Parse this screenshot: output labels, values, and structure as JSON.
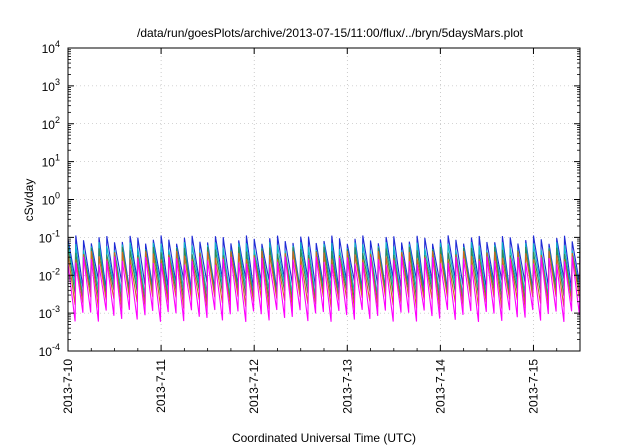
{
  "chart_data": {
    "type": "line",
    "title": "/data/run/goesPlots/archive/2013-07-15/11:00/flux/../bryn/5daysMars.plot",
    "xlabel": "Coordinated Universal Time (UTC)",
    "ylabel": "cSv/day",
    "x_range": [
      "2013-07-10",
      "2013-07-15T12:00"
    ],
    "x_ticks": [
      "2013-7-10",
      "2013-7-11",
      "2013-7-12",
      "2013-7-13",
      "2013-7-14",
      "2013-7-15"
    ],
    "y_scale": "log",
    "ylim": [
      0.0001,
      10000
    ],
    "y_ticks": [
      {
        "value": 0.0001,
        "base": "10",
        "exp": "-4"
      },
      {
        "value": 0.001,
        "base": "10",
        "exp": "-3"
      },
      {
        "value": 0.01,
        "base": "10",
        "exp": "-2"
      },
      {
        "value": 0.1,
        "base": "10",
        "exp": "-1"
      },
      {
        "value": 1,
        "base": "10",
        "exp": "0"
      },
      {
        "value": 10,
        "base": "10",
        "exp": "1"
      },
      {
        "value": 100,
        "base": "10",
        "exp": "2"
      },
      {
        "value": 1000,
        "base": "10",
        "exp": "3"
      },
      {
        "value": 10000,
        "base": "10",
        "exp": "4"
      }
    ],
    "grid": true,
    "sawtooth_period_hours": 2.0,
    "series": [
      {
        "color": "#1f2bd6",
        "peak": 0.09,
        "trough": 0.006
      },
      {
        "color": "#11b8c8",
        "peak": 0.06,
        "trough": 0.004
      },
      {
        "color": "#2e8b57",
        "peak": 0.045,
        "trough": 0.003
      },
      {
        "color": "#d2691e",
        "peak": 0.035,
        "trough": 0.002
      },
      {
        "color": "#ff00ff",
        "peak": 0.025,
        "trough": 0.0009
      }
    ]
  }
}
